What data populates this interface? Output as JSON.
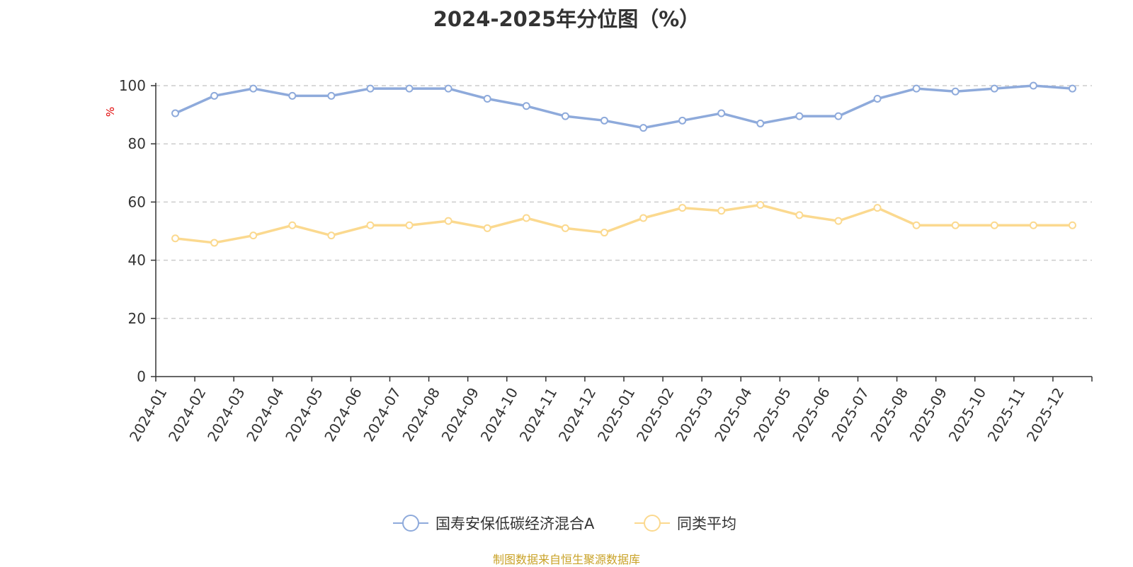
{
  "chart_data": {
    "type": "line",
    "title": "2024-2025年分位图（%）",
    "ylabel": "%",
    "xlabel": "",
    "ylim": [
      0,
      100
    ],
    "yticks": [
      0,
      20,
      40,
      60,
      80,
      100
    ],
    "grid": true,
    "legend_position": "bottom",
    "categories": [
      "2024-01",
      "2024-02",
      "2024-03",
      "2024-04",
      "2024-05",
      "2024-06",
      "2024-07",
      "2024-08",
      "2024-09",
      "2024-10",
      "2024-11",
      "2024-12",
      "2025-01",
      "2025-02",
      "2025-03",
      "2025-04",
      "2025-05",
      "2025-06",
      "2025-07",
      "2025-08",
      "2025-09",
      "2025-10",
      "2025-11",
      "2025-12"
    ],
    "series": [
      {
        "name": "国寿安保低碳经济混合A",
        "color": "#8eaadb",
        "values": [
          90.5,
          96.5,
          99,
          96.5,
          96.5,
          99,
          99,
          99,
          95.5,
          93,
          89.5,
          88,
          85.5,
          88,
          90.5,
          87,
          89.5,
          89.5,
          95.5,
          99,
          98,
          99,
          100,
          99
        ]
      },
      {
        "name": "同类平均",
        "color": "#fbd98f",
        "values": [
          47.5,
          46,
          48.5,
          52,
          48.5,
          52,
          52,
          53.5,
          51,
          54.5,
          51,
          49.5,
          54.5,
          58,
          57,
          59,
          55.5,
          53.5,
          58,
          52,
          52,
          52,
          52,
          52
        ]
      }
    ]
  },
  "source_note": "制图数据来自恒生聚源数据库"
}
